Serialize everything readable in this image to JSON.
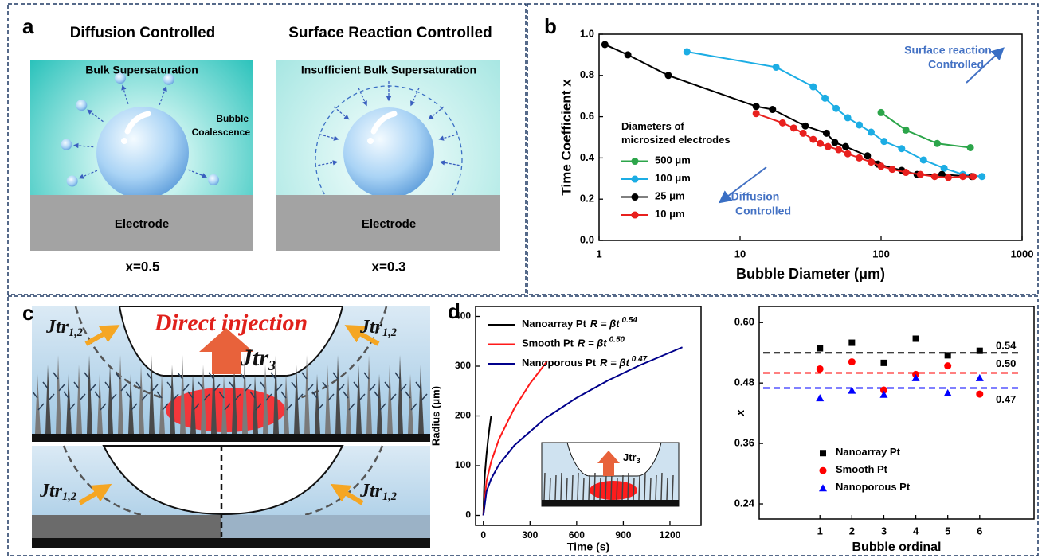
{
  "panel_labels": [
    "a",
    "b",
    "c",
    "d"
  ],
  "panel_a": {
    "left": {
      "title": "Diffusion Controlled",
      "bulk": "Bulk Supersaturation",
      "coalescence": [
        "Bubble",
        "Coalescence"
      ],
      "electrode": "Electrode",
      "result": "x=0.5"
    },
    "right": {
      "title": "Surface Reaction Controlled",
      "bulk": "Insufficient Bulk Supersaturation",
      "electrode": "Electrode",
      "result": "x=0.3"
    }
  },
  "panel_c": {
    "headline": "Direct injection",
    "flux_labels": [
      {
        "main": "Jtr",
        "sub": "1,2"
      },
      {
        "main": "Jtr",
        "sub": "3"
      },
      {
        "main": "Jtr",
        "sub": "1,2"
      },
      {
        "main": "Jtr",
        "sub": "1,2"
      },
      {
        "main": "Jtr",
        "sub": "1,2"
      }
    ]
  },
  "chart_data": [
    {
      "type": "scatter",
      "xlog": true,
      "connect": true,
      "xlabel": "Bubble Diameter (μm)",
      "ylabel": "Time Coefficient x",
      "xlim": [
        1,
        1000
      ],
      "xticks": [
        1,
        10,
        100,
        1000
      ],
      "ylim": [
        0,
        1
      ],
      "yticks": [
        {
          "value": 0,
          "label": "0.0"
        },
        0.2,
        0.4,
        0.6,
        0.8,
        {
          "value": 1,
          "label": "1.0"
        }
      ],
      "legend": "center left",
      "legend_title": [
        "Diameters of",
        "microsized electrodes"
      ],
      "series": [
        {
          "name": "500 μm",
          "color": "#2ca54a",
          "x": [
            100,
            150,
            250,
            430
          ],
          "values": [
            0.62,
            0.535,
            0.47,
            0.45
          ]
        },
        {
          "name": "100 μm",
          "color": "#1cade4",
          "x": [
            4.2,
            18,
            33,
            40,
            48,
            58,
            70,
            85,
            105,
            140,
            200,
            280,
            380,
            520
          ],
          "values": [
            0.915,
            0.84,
            0.745,
            0.69,
            0.64,
            0.595,
            0.56,
            0.525,
            0.48,
            0.445,
            0.39,
            0.35,
            0.32,
            0.31
          ]
        },
        {
          "name": "25 μm",
          "color": "#000000",
          "x": [
            1.1,
            1.6,
            3.1,
            13,
            17,
            29,
            41,
            47,
            56,
            80,
            95,
            140,
            180,
            270,
            440
          ],
          "values": [
            0.95,
            0.9,
            0.8,
            0.65,
            0.635,
            0.555,
            0.52,
            0.475,
            0.455,
            0.41,
            0.37,
            0.34,
            0.32,
            0.32,
            0.31
          ]
        },
        {
          "name": "10 μm",
          "color": "#e8201e",
          "x": [
            13,
            20,
            24,
            28,
            33,
            37,
            42,
            50,
            58,
            70,
            85,
            100,
            120,
            150,
            190,
            240,
            300,
            380,
            450
          ],
          "values": [
            0.615,
            0.57,
            0.545,
            0.52,
            0.49,
            0.47,
            0.455,
            0.44,
            0.42,
            0.4,
            0.38,
            0.36,
            0.345,
            0.33,
            0.32,
            0.31,
            0.305,
            0.31,
            0.31
          ]
        }
      ],
      "annotations": [
        {
          "text": [
            "Surface reaction",
            "Controlled"
          ],
          "color": "#4472c4"
        },
        {
          "text": [
            "Diffusion",
            "Controlled"
          ],
          "color": "#4472c4"
        }
      ]
    },
    {
      "type": "line",
      "xlabel": "Time (s)",
      "ylabel": "Radius (μm)",
      "xlim": [
        -50,
        1400
      ],
      "xticks": [
        0,
        300,
        600,
        900,
        1200
      ],
      "ylim": [
        -20,
        420
      ],
      "yticks": [
        0,
        100,
        200,
        300,
        400
      ],
      "legend": "upper left",
      "inset_label": {
        "main": "Jtr",
        "sub": "3"
      },
      "series": [
        {
          "name": "Nanoarray Pt",
          "formula": "R = βt",
          "exponent": "0.54",
          "color": "#000000",
          "x": [
            0,
            5,
            10,
            20,
            30,
            40,
            50
          ],
          "values": [
            0,
            57.7,
            83.9,
            122,
            151.8,
            177.4,
            200
          ]
        },
        {
          "name": "Smooth Pt",
          "formula": "R = βt",
          "exponent": "0.50",
          "color": "#ff1a1a",
          "x": [
            0,
            20,
            50,
            100,
            200,
            300,
            410
          ],
          "values": [
            0,
            68.4,
            108,
            153,
            216,
            265,
            310
          ]
        },
        {
          "name": "Nanoporous Pt",
          "formula": "R = βt",
          "exponent": "0.47",
          "color": "#00008b",
          "x": [
            0,
            20,
            50,
            100,
            200,
            400,
            600,
            800,
            1000,
            1280
          ],
          "values": [
            0,
            47.9,
            73.5,
            101.9,
            141,
            195.6,
            236.5,
            271,
            301,
            338
          ]
        }
      ]
    },
    {
      "type": "scatter",
      "xlabel": "Bubble ordinal",
      "ylabel": "x",
      "x": [
        1,
        2,
        3,
        4,
        5,
        6
      ],
      "xlim": [
        -0.9,
        7.7
      ],
      "xticks": [
        1,
        2,
        3,
        4,
        5,
        6
      ],
      "ylim": [
        0.21,
        0.632
      ],
      "yticks": [
        {
          "value": 0.6,
          "label": "0.60"
        },
        0.48,
        0.36,
        0.24
      ],
      "legend": "lower left",
      "reference_lines": [
        {
          "value": 0.54,
          "label": "0.54",
          "color": "#000000"
        },
        {
          "value": 0.5,
          "label": "0.50",
          "color": "#ff0000"
        },
        {
          "value": 0.47,
          "label": "0.47",
          "color": "#0000ff"
        }
      ],
      "series": [
        {
          "name": "Nanoarray Pt",
          "color": "#000000",
          "marker": "square",
          "values": [
            0.549,
            0.56,
            0.52,
            0.568,
            0.535,
            0.544
          ]
        },
        {
          "name": "Smooth Pt",
          "color": "#ff0000",
          "marker": "circle",
          "values": [
            0.508,
            0.522,
            0.466,
            0.497,
            0.514,
            0.458
          ]
        },
        {
          "name": "Nanoporous Pt",
          "color": "#0000ff",
          "marker": "triangle",
          "values": [
            0.45,
            0.465,
            0.457,
            0.49,
            0.46,
            0.49
          ]
        }
      ]
    }
  ]
}
